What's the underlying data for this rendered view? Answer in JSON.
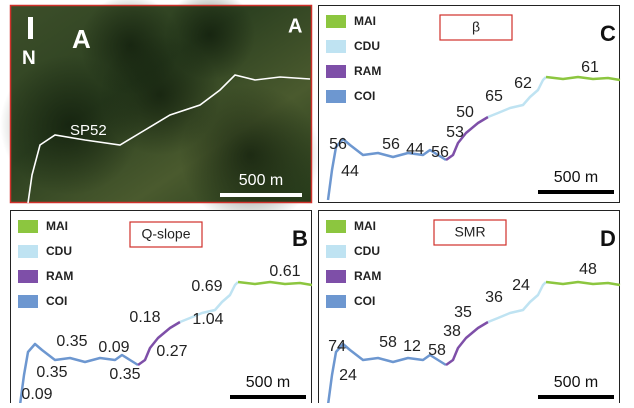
{
  "panels": [
    {
      "letter": "A",
      "north": "N",
      "corner": "A",
      "road": "SP52",
      "scale": "500 m"
    },
    {
      "letter": "C",
      "parameter": "β",
      "legend": [
        "MAI",
        "CDU",
        "RAM",
        "COI"
      ],
      "labels": [
        56,
        44,
        56,
        44,
        56,
        53,
        50,
        65,
        62,
        61
      ],
      "scale": "500 m"
    },
    {
      "letter": "B",
      "parameter": "Q-slope",
      "legend": [
        "MAI",
        "CDU",
        "RAM",
        "COI"
      ],
      "labels": [
        0.35,
        0.35,
        0.09,
        0.09,
        0.35,
        0.27,
        0.18,
        1.04,
        0.69,
        0.61
      ],
      "scale": "500 m"
    },
    {
      "letter": "D",
      "parameter": "SMR",
      "legend": [
        "MAI",
        "CDU",
        "RAM",
        "COI"
      ],
      "labels": [
        74,
        24,
        58,
        12,
        58,
        38,
        35,
        36,
        24,
        48
      ],
      "scale": "500 m"
    }
  ]
}
